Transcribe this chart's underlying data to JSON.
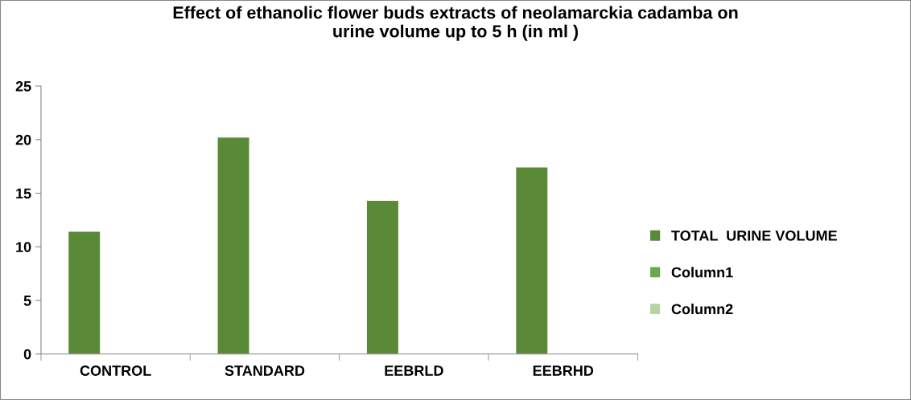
{
  "chart_data": {
    "type": "bar",
    "title": "Effect of ethanolic flower buds extracts of neolamarckia cadamba on\nurine volume up to 5 h (in ml )",
    "categories": [
      "CONTROL",
      "STANDARD",
      "EEBRLD",
      "EEBRHD"
    ],
    "series": [
      {
        "name": "TOTAL  URINE VOLUME",
        "color": "#5a8a37",
        "values": [
          11.4,
          20.2,
          14.3,
          17.4
        ]
      },
      {
        "name": "Column1",
        "color": "#6aa84f",
        "values": [
          null,
          null,
          null,
          null
        ]
      },
      {
        "name": "Column2",
        "color": "#b6d3a8",
        "values": [
          null,
          null,
          null,
          null
        ]
      }
    ],
    "ylim": [
      0,
      25
    ],
    "yticks": [
      0,
      5,
      10,
      15,
      20,
      25
    ],
    "grid": false,
    "legend": "right"
  }
}
